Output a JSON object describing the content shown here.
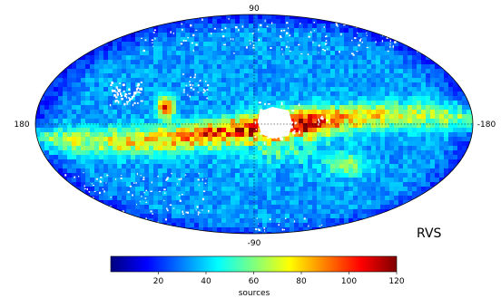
{
  "map": {
    "projection": "mollweide",
    "top_label": "90",
    "bottom_label": "-90",
    "left_label": "180",
    "right_label": "-180",
    "grid": true,
    "gaps_color": "#ffffff",
    "features": [
      {
        "name": "galactic-plane-band",
        "level": 0.55
      },
      {
        "name": "magellanic-cloud-large",
        "level": 0.7
      },
      {
        "name": "magellanic-cloud-small",
        "level": 0.85
      }
    ]
  },
  "panel_label": "RVS",
  "colorbar": {
    "label": "sources",
    "ticks": [
      "20",
      "40",
      "60",
      "80",
      "100",
      "120"
    ],
    "min": 0,
    "max": 120,
    "colormap": "jet",
    "stops": [
      "#00007f",
      "#0000ff",
      "#007fff",
      "#00ffff",
      "#7fff7f",
      "#ffff00",
      "#ff7f00",
      "#ff0000",
      "#7f0000"
    ]
  }
}
